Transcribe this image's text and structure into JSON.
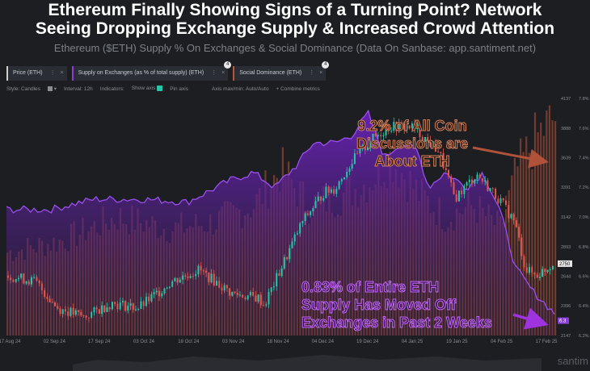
{
  "headline": {
    "line1": "Ethereum Finally Showing Signs of a Turning Point? Network",
    "line2": "Seeing Dropping Exchange Supply & Increased Crowd Attention",
    "subtitle": "Ethereum ($ETH) Supply % On Exchanges & Social Dominance (Data On Sanbase: app.santiment.net)"
  },
  "legend": [
    {
      "label": "Price (ETH)",
      "badge": "",
      "color": "#cfcfcf"
    },
    {
      "label": "Supply on Exchanges (as % of total supply) (ETH)",
      "badge": "4",
      "color": "#8b3fd9"
    },
    {
      "label": "Social Dominance (ETH)",
      "badge": "4",
      "color": "#b8563c"
    }
  ],
  "legend_dots": "⋮",
  "legend_close": "×",
  "toolbar": {
    "style": "Style: Candles",
    "style_arrow": "▾",
    "interval": "Interval: 12h",
    "indicators": "Indicators:",
    "show_axis": "Show axis",
    "pin_axis": "Pin axis",
    "axis_mode": "Axis max/min: Auto/Auto",
    "combine": "+ Combine metrics"
  },
  "annotations": {
    "social": [
      "9.2% of All Coin",
      "Discussions are",
      "About ETH"
    ],
    "supply": [
      "0.83% of Entire ETH",
      "Supply Has Moved Off",
      "Exchanges in Past 2 Weeks"
    ]
  },
  "watermark": "santim",
  "chart_data": {
    "type": "candlestick+area+bar",
    "x_labels": [
      "17 Aug 24",
      "02 Sep 24",
      "17 Sep 24",
      "03 Oct 24",
      "18 Oct 24",
      "03 Nov 24",
      "18 Nov 24",
      "04 Dec 24",
      "19 Dec 24",
      "04 Jan 25",
      "19 Jan 25",
      "04 Feb 25",
      "17 Feb 25"
    ],
    "price_axis_ticks": [
      "4137",
      "3888",
      "3639",
      "3391",
      "3142",
      "2893",
      "2644",
      "2396",
      "2147"
    ],
    "price_ylim": [
      2147,
      4137
    ],
    "current_price_label": "2750",
    "supply_axis_ticks": [
      "7.8%",
      "7.6%",
      "7.4%",
      "7.2%",
      "7.0%",
      "6.8%",
      "6.6%",
      "6.4%",
      "6.2%"
    ],
    "supply_ylim": [
      6.2,
      7.8
    ],
    "current_supply_label": "6.3",
    "series": [
      {
        "name": "Price (ETH)",
        "color": "#26c6a8",
        "down_color": "#e0574f",
        "x_fraction": [
          0.0,
          0.05,
          0.09,
          0.14,
          0.19,
          0.24,
          0.3,
          0.35,
          0.41,
          0.46,
          0.47,
          0.5,
          0.54,
          0.58,
          0.6,
          0.63,
          0.67,
          0.7,
          0.74,
          0.79,
          0.82,
          0.86,
          0.9,
          0.93,
          0.95,
          0.97,
          1.0
        ],
        "values": [
          2650,
          2600,
          2380,
          2300,
          2420,
          2380,
          2600,
          2700,
          2500,
          2460,
          2400,
          2700,
          3100,
          3350,
          3380,
          3600,
          3800,
          3900,
          3900,
          3700,
          3300,
          3500,
          3300,
          3100,
          2700,
          2650,
          2750
        ]
      },
      {
        "name": "Supply on Exchanges (as % of total supply) (ETH)",
        "color": "#8b3fd9",
        "x_fraction": [
          0.0,
          0.08,
          0.16,
          0.25,
          0.33,
          0.41,
          0.45,
          0.49,
          0.53,
          0.56,
          0.6,
          0.63,
          0.66,
          0.69,
          0.72,
          0.75,
          0.77,
          0.8,
          0.84,
          0.87,
          0.9,
          0.93,
          0.96,
          1.0
        ],
        "values": [
          7.05,
          7.05,
          7.12,
          7.12,
          7.1,
          7.25,
          7.3,
          7.2,
          7.35,
          7.5,
          7.5,
          7.55,
          7.7,
          7.4,
          7.5,
          7.45,
          7.2,
          7.3,
          7.2,
          7.3,
          7.05,
          6.65,
          6.5,
          6.35
        ]
      },
      {
        "name": "Social Dominance (ETH)",
        "color": "#b8563c",
        "unit": "%",
        "x_fraction": [
          0.0,
          0.1,
          0.2,
          0.3,
          0.38,
          0.45,
          0.5,
          0.55,
          0.6,
          0.66,
          0.7,
          0.75,
          0.8,
          0.85,
          0.9,
          0.93,
          0.97,
          1.0
        ],
        "values": [
          3.5,
          4.0,
          5.0,
          4.5,
          4.8,
          5.5,
          7.0,
          5.5,
          5.8,
          6.5,
          7.5,
          6.0,
          5.0,
          5.5,
          4.5,
          7.0,
          8.5,
          9.2
        ]
      }
    ]
  }
}
